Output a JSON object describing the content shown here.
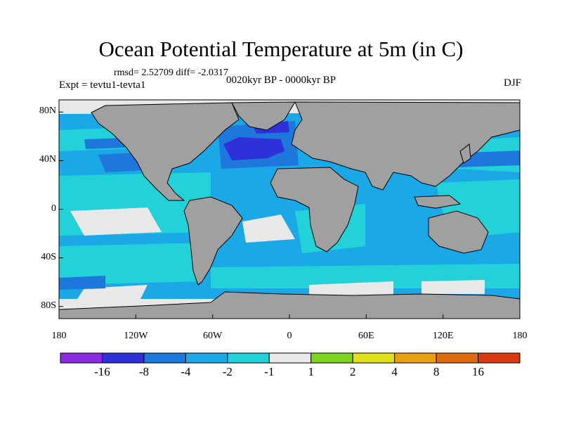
{
  "title": "Ocean Potential Temperature at 5m (in C)",
  "stats": "rmsd= 2.52709  diff= -2.0317",
  "experiment": "Expt = tevtu1-tevta1",
  "period": "0020kyr BP - 0000kyr BP",
  "season": "DJF",
  "map": {
    "lat_ticks": [
      {
        "value": 80,
        "label": "80N"
      },
      {
        "value": 40,
        "label": "40N"
      },
      {
        "value": 0,
        "label": "0"
      },
      {
        "value": -40,
        "label": "40S"
      },
      {
        "value": -80,
        "label": "80S"
      }
    ],
    "lon_ticks": [
      {
        "value": -180,
        "label": "180"
      },
      {
        "value": -120,
        "label": "120W"
      },
      {
        "value": -60,
        "label": "60W"
      },
      {
        "value": 0,
        "label": "0"
      },
      {
        "value": 60,
        "label": "60E"
      },
      {
        "value": 120,
        "label": "120E"
      },
      {
        "value": 180,
        "label": "180"
      }
    ],
    "lat_range": [
      -90,
      90
    ],
    "lon_range": [
      -180,
      180
    ]
  },
  "colorbar": {
    "colors": [
      "#8a2be2",
      "#3030d8",
      "#1e78dc",
      "#1aa8e6",
      "#22d2d8",
      "#e8e8e8",
      "#7ed320",
      "#e0e01a",
      "#e8a010",
      "#e06a10",
      "#d83a10"
    ],
    "labels": [
      "-16",
      "-8",
      "-4",
      "-2",
      "-1",
      "1",
      "2",
      "4",
      "8",
      "16"
    ]
  },
  "colors": {
    "land": "#a0a0a0",
    "ocean_base": "#1aa8e6",
    "ice": "#e8e8e8",
    "coast": "#000000"
  }
}
